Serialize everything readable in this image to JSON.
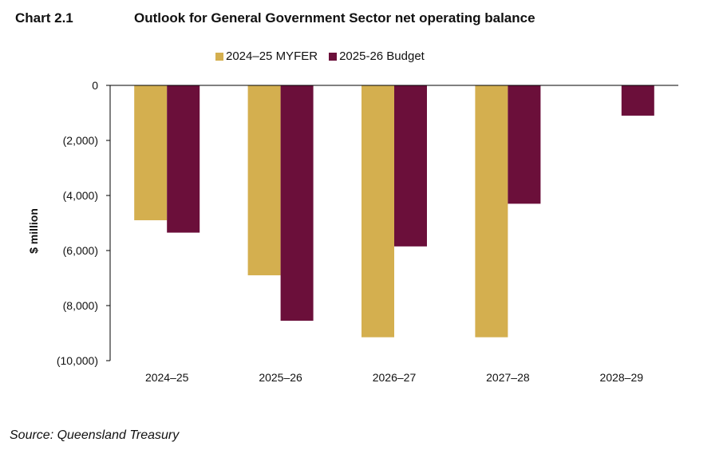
{
  "header": {
    "chart_number": "Chart 2.1",
    "title": "Outlook for General Government Sector net operating balance"
  },
  "footer": {
    "source": "Source: Queensland Treasury"
  },
  "chart_data": {
    "type": "bar",
    "title": "Outlook for General Government Sector net operating balance",
    "xlabel": "",
    "ylabel": "$ million",
    "categories": [
      "2024–25",
      "2025–26",
      "2026–27",
      "2027–28",
      "2028–29"
    ],
    "series": [
      {
        "name": "2024–25 MYFER",
        "color": "#D4AF4F",
        "values": [
          -4900,
          -6900,
          -9150,
          -9150,
          null
        ]
      },
      {
        "name": "2025-26 Budget",
        "color": "#6B0F3A",
        "values": [
          -5350,
          -8550,
          -5850,
          -4300,
          -1100
        ]
      }
    ],
    "ylim": [
      -10000,
      0
    ],
    "yticks": [
      0,
      -2000,
      -4000,
      -6000,
      -8000,
      -10000
    ],
    "ytick_labels": [
      "0",
      "(2,000)",
      "(4,000)",
      "(6,000)",
      "(8,000)",
      "(10,000)"
    ],
    "grid": false,
    "legend_position": "top"
  }
}
